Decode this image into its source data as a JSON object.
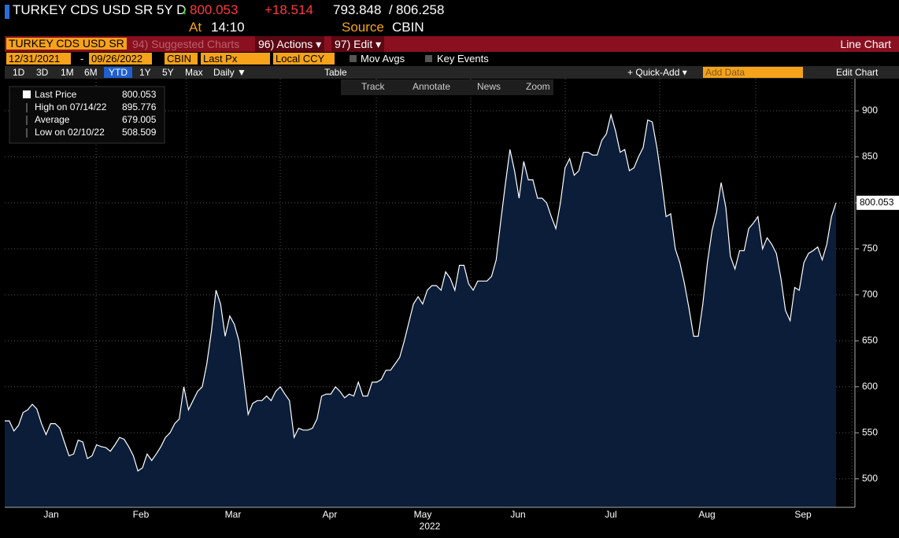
{
  "header": {
    "ticker": "TURKEY CDS USD SR 5Y D",
    "arrow": "↓",
    "price": "800.053",
    "change": "+18.514",
    "bid": "793.848",
    "ask": "806.258",
    "at_label": "At",
    "time": "14:10",
    "source_label": "Source",
    "source": "CBIN"
  },
  "menu": {
    "security": "TURKEY CDS USD SR",
    "suggested": "94) Suggested Charts",
    "actions": "96) Actions ▾",
    "edit": "97) Edit ▾",
    "chart_type": "Line Chart"
  },
  "settings": {
    "start": "12/31/2021",
    "end": "09/26/2022",
    "source": "CBIN",
    "field": "Last Px",
    "currency": "Local CCY",
    "mov_avgs": "Mov Avgs",
    "key_events": "Key Events"
  },
  "toolbar": {
    "ranges": [
      "1D",
      "3D",
      "1M",
      "6M",
      "YTD",
      "1Y",
      "5Y",
      "Max"
    ],
    "period": "Daily ▼",
    "table": "Table",
    "quick_add": "+ Quick-Add ▾",
    "add_data": "Add Data",
    "edit_chart": "Edit Chart",
    "tools": [
      "Track",
      "Annotate",
      "News",
      "Zoom"
    ]
  },
  "legend": [
    {
      "label": "Last Price",
      "value": "800.053"
    },
    {
      "label": "High on 07/14/22",
      "value": "895.776"
    },
    {
      "label": "Average",
      "value": "679.005"
    },
    {
      "label": "Low on 02/10/22",
      "value": "508.509"
    }
  ],
  "chart_data": {
    "type": "line",
    "color": "#ffffff",
    "fill": "#0b1d38",
    "months": [
      "Jan",
      "Feb",
      "Mar",
      "Apr",
      "May",
      "Jun",
      "Jul",
      "Aug",
      "Sep"
    ],
    "year": "2022",
    "values": [
      563,
      563,
      552,
      558,
      572,
      575,
      581,
      576,
      560,
      548,
      560,
      560,
      555,
      540,
      525,
      527,
      542,
      540,
      522,
      525,
      537,
      535,
      534,
      530,
      537,
      545,
      543,
      535,
      525,
      508.509,
      512,
      527,
      520,
      527,
      535,
      545,
      550,
      560,
      565,
      600,
      575,
      585,
      595,
      600,
      625,
      660,
      705,
      690,
      655,
      677,
      668,
      650,
      610,
      570,
      582,
      585,
      585,
      590,
      585,
      595,
      600,
      592,
      585,
      545,
      555,
      553,
      553,
      555,
      565,
      590,
      592,
      592,
      600,
      595,
      588,
      592,
      590,
      605,
      590,
      590,
      605,
      605,
      608,
      618,
      618,
      625,
      632,
      650,
      670,
      690,
      698,
      690,
      705,
      710,
      710,
      705,
      725,
      718,
      705,
      732,
      732,
      712,
      705,
      715,
      715,
      715,
      720,
      738,
      780,
      820,
      858,
      835,
      805,
      845,
      825,
      825,
      805,
      805,
      800,
      785,
      772,
      800,
      838,
      848,
      830,
      835,
      855,
      855,
      852,
      852,
      868,
      875,
      895.776,
      878,
      855,
      858,
      835,
      838,
      850,
      860,
      890,
      888,
      860,
      825,
      785,
      788,
      750,
      735,
      712,
      685,
      655,
      655,
      690,
      735,
      770,
      790,
      822,
      795,
      742,
      728,
      748,
      748,
      772,
      778,
      785,
      750,
      762,
      755,
      745,
      718,
      683,
      672,
      708,
      705,
      735,
      745,
      748,
      752,
      738,
      755,
      785,
      800.053
    ],
    "ylim": [
      469,
      935
    ],
    "yticks": [
      500,
      550,
      600,
      650,
      700,
      750,
      800,
      850,
      900
    ],
    "grid": true
  }
}
